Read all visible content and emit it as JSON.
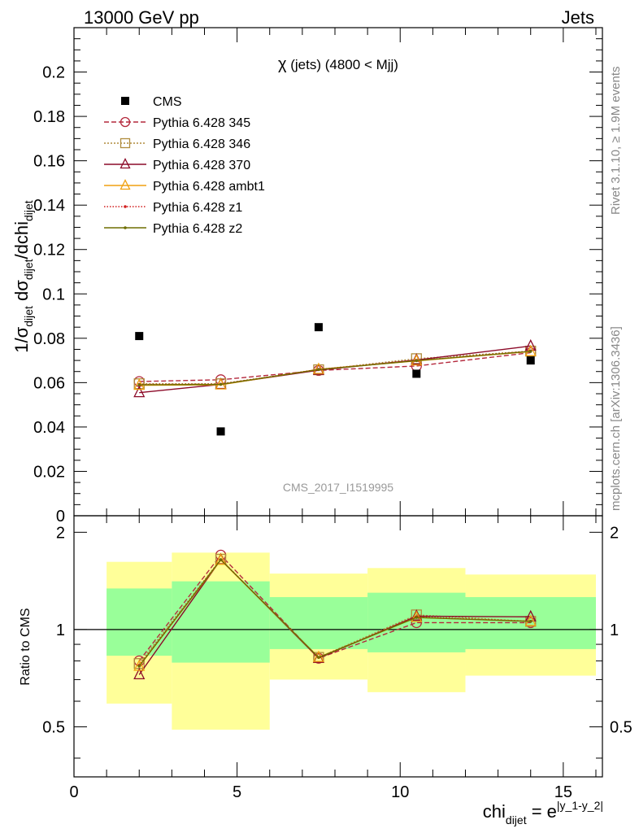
{
  "header": {
    "left_title": "13000 GeV pp",
    "right_title": "Jets"
  },
  "side_labels": {
    "rivet_part1": "Rivet 3.1.10,",
    "rivet_part2": "≥ 1.9M events",
    "mcplots": "mcplots.cern.ch [arXiv:1306.3436]"
  },
  "chart_data": {
    "type": "scatter",
    "title_chi": "χ",
    "title_rest": " (jets) (4800 < Mjj)",
    "analysis_id": "CMS_2017_I1519995",
    "ylabel_main": "1/σ_dijet dσ_dijet/dchi_dijet",
    "ylabel_ratio": "Ratio to CMS",
    "xlabel": "chi_dijet = e^|y_1-y_2|",
    "xlim": [
      0,
      16.2
    ],
    "ylim_main": [
      0,
      0.22
    ],
    "ylim_ratio": [
      0.35,
      2.25
    ],
    "xticks": [
      0,
      5,
      10,
      15
    ],
    "yticks_main": [
      0,
      0.02,
      0.04,
      0.06,
      0.08,
      0.1,
      0.12,
      0.14,
      0.16,
      0.18,
      0.2
    ],
    "yticks_ratio": [
      0.5,
      1,
      2
    ],
    "bins": [
      [
        1,
        3
      ],
      [
        3,
        6
      ],
      [
        6,
        9
      ],
      [
        9,
        12
      ],
      [
        12,
        16
      ]
    ],
    "x": [
      2,
      4.5,
      7.5,
      10.5,
      14
    ],
    "data": {
      "name": "CMS",
      "values": [
        0.081,
        0.038,
        0.085,
        0.064,
        0.07
      ],
      "band_inner": [
        [
          0.83,
          1.34
        ],
        [
          0.79,
          1.41
        ],
        [
          0.87,
          1.26
        ],
        [
          0.85,
          1.3
        ],
        [
          0.87,
          1.26
        ]
      ],
      "band_outer": [
        [
          0.59,
          1.62
        ],
        [
          0.49,
          1.73
        ],
        [
          0.7,
          1.49
        ],
        [
          0.64,
          1.55
        ],
        [
          0.72,
          1.48
        ]
      ]
    },
    "series": [
      {
        "name": "Pythia 6.428 345",
        "color": "#b4283c",
        "dash": "6,3",
        "marker": "circle",
        "values": [
          0.0605,
          0.0613,
          0.0655,
          0.0675,
          0.0735
        ],
        "ratio": [
          0.8,
          1.7,
          0.815,
          1.05,
          1.05
        ]
      },
      {
        "name": "Pythia 6.428 346",
        "color": "#b08c3c",
        "dash": "2,2",
        "marker": "square",
        "values": [
          0.0595,
          0.0595,
          0.0658,
          0.0708,
          0.0742
        ],
        "ratio": [
          0.785,
          1.65,
          0.82,
          1.11,
          1.06
        ]
      },
      {
        "name": "Pythia 6.428 370",
        "color": "#8c0a28",
        "dash": "",
        "marker": "triangle",
        "values": [
          0.0555,
          0.0592,
          0.0656,
          0.0702,
          0.0765
        ],
        "ratio": [
          0.725,
          1.645,
          0.815,
          1.1,
          1.095
        ]
      },
      {
        "name": "Pythia 6.428 ambt1",
        "color": "#f0a010",
        "dash": "",
        "marker": "triangle",
        "values": [
          0.0588,
          0.059,
          0.066,
          0.0698,
          0.074
        ],
        "ratio": [
          0.77,
          1.64,
          0.82,
          1.09,
          1.06
        ]
      },
      {
        "name": "Pythia 6.428 z1",
        "color": "#d21e1e",
        "dash": "1.5,2",
        "marker": "dot",
        "values": [
          0.0592,
          0.0593,
          0.066,
          0.07,
          0.0742
        ],
        "ratio": [
          0.775,
          1.645,
          0.82,
          1.095,
          1.06
        ]
      },
      {
        "name": "Pythia 6.428 z2",
        "color": "#6e6e00",
        "dash": "",
        "marker": "dot",
        "values": [
          0.059,
          0.0592,
          0.0659,
          0.0699,
          0.0741
        ],
        "ratio": [
          0.77,
          1.645,
          0.82,
          1.09,
          1.06
        ]
      }
    ],
    "colors": {
      "band_inner": "#99ff99",
      "band_outer": "#ffff99",
      "data_marker": "#000000",
      "analysis_text": "#999999",
      "side_text": "#888888"
    }
  }
}
